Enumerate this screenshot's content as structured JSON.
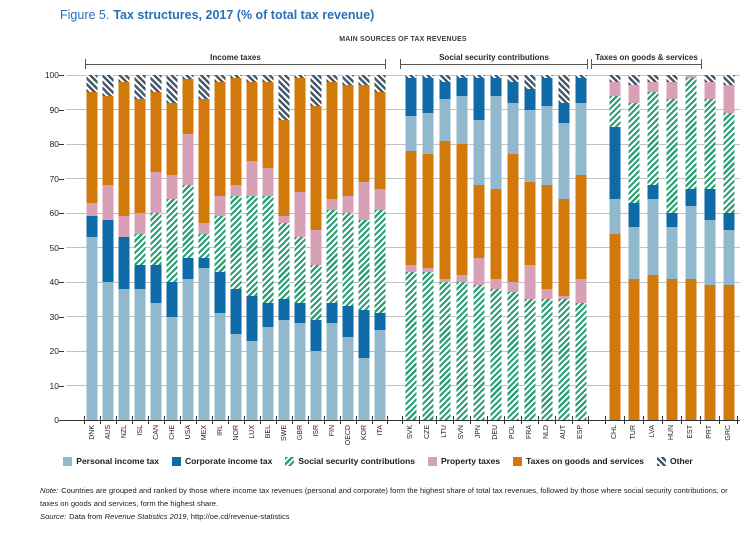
{
  "title": {
    "prefix": "Figure 5.",
    "text": "Tax structures, 2017 (% of total tax revenue)"
  },
  "header": {
    "main_label": "MAIN SOURCES OF TAX REVENUES"
  },
  "colors": {
    "personal_income_tax": "#92b8ce",
    "corporate_income_tax": "#0e6ba8",
    "social_security_contributions": "#2fa076",
    "property_taxes": "#d7a0b6",
    "goods_and_services": "#d2790c",
    "other": "#46586b",
    "title": "#2a70b8"
  },
  "legend": [
    {
      "key": "personal_income_tax",
      "label": "Personal income tax"
    },
    {
      "key": "corporate_income_tax",
      "label": "Corporate income tax"
    },
    {
      "key": "social_security_contributions",
      "label": "Social security contributions"
    },
    {
      "key": "property_taxes",
      "label": "Property taxes"
    },
    {
      "key": "goods_and_services",
      "label": "Taxes on goods and services"
    },
    {
      "key": "other",
      "label": "Other"
    }
  ],
  "note": {
    "label": "Note:",
    "text": "Countries are grouped and ranked by those where income tax revenues (personal and corporate) form the highest share of total tax revenues, followed by those where social security contributions, or taxes on goods and services, form the highest share."
  },
  "source": {
    "label": "Source:",
    "data_from": "Data from",
    "publication": "Revenue Statistics 2019",
    "rest": ", http://oe.cd/revenue-statistics"
  },
  "chart_data": {
    "type": "bar",
    "stacked": true,
    "unit": "% of total tax revenue",
    "ylim": [
      0,
      100
    ],
    "yticks": [
      0,
      10,
      20,
      30,
      40,
      50,
      60,
      70,
      80,
      90,
      100
    ],
    "grid": true,
    "legend_position": "bottom",
    "groups": [
      {
        "label": "Income taxes",
        "stack_order": [
          "personal_income_tax",
          "corporate_income_tax",
          "social_security_contributions",
          "property_taxes",
          "goods_and_services",
          "other"
        ],
        "bars": [
          {
            "country": "DNK",
            "values": {
              "personal_income_tax": 53,
              "corporate_income_tax": 6,
              "social_security_contributions": 0,
              "property_taxes": 4,
              "goods_and_services": 32,
              "other": 5
            }
          },
          {
            "country": "AUS",
            "values": {
              "personal_income_tax": 40,
              "corporate_income_tax": 18,
              "social_security_contributions": 0,
              "property_taxes": 10,
              "goods_and_services": 26,
              "other": 6
            }
          },
          {
            "country": "NZL",
            "values": {
              "personal_income_tax": 38,
              "corporate_income_tax": 15,
              "social_security_contributions": 0,
              "property_taxes": 6,
              "goods_and_services": 39,
              "other": 2
            }
          },
          {
            "country": "ISL",
            "values": {
              "personal_income_tax": 38,
              "corporate_income_tax": 7,
              "social_security_contributions": 9,
              "property_taxes": 6,
              "goods_and_services": 33,
              "other": 7
            }
          },
          {
            "country": "CAN",
            "values": {
              "personal_income_tax": 34,
              "corporate_income_tax": 11,
              "social_security_contributions": 15,
              "property_taxes": 12,
              "goods_and_services": 23,
              "other": 5
            }
          },
          {
            "country": "CHE",
            "values": {
              "personal_income_tax": 30,
              "corporate_income_tax": 10,
              "social_security_contributions": 24,
              "property_taxes": 7,
              "goods_and_services": 21,
              "other": 8
            }
          },
          {
            "country": "USA",
            "values": {
              "personal_income_tax": 41,
              "corporate_income_tax": 6,
              "social_security_contributions": 21,
              "property_taxes": 15,
              "goods_and_services": 16,
              "other": 1
            }
          },
          {
            "country": "MEX",
            "values": {
              "personal_income_tax": 44,
              "corporate_income_tax": 3,
              "social_security_contributions": 7,
              "property_taxes": 3,
              "goods_and_services": 36,
              "other": 7
            }
          },
          {
            "country": "IRL",
            "values": {
              "personal_income_tax": 31,
              "corporate_income_tax": 12,
              "social_security_contributions": 16,
              "property_taxes": 6,
              "goods_and_services": 33,
              "other": 2
            }
          },
          {
            "country": "NOR",
            "values": {
              "personal_income_tax": 25,
              "corporate_income_tax": 13,
              "social_security_contributions": 27,
              "property_taxes": 3,
              "goods_and_services": 31,
              "other": 1
            }
          },
          {
            "country": "LUX",
            "values": {
              "personal_income_tax": 23,
              "corporate_income_tax": 13,
              "social_security_contributions": 29,
              "property_taxes": 10,
              "goods_and_services": 23,
              "other": 2
            }
          },
          {
            "country": "BEL",
            "values": {
              "personal_income_tax": 27,
              "corporate_income_tax": 7,
              "social_security_contributions": 31,
              "property_taxes": 8,
              "goods_and_services": 25,
              "other": 2
            }
          },
          {
            "country": "SWE",
            "values": {
              "personal_income_tax": 29,
              "corporate_income_tax": 6,
              "social_security_contributions": 22,
              "property_taxes": 2,
              "goods_and_services": 28,
              "other": 13
            }
          },
          {
            "country": "GBR",
            "values": {
              "personal_income_tax": 28,
              "corporate_income_tax": 6,
              "social_security_contributions": 19,
              "property_taxes": 13,
              "goods_and_services": 33,
              "other": 1
            }
          },
          {
            "country": "ISR",
            "values": {
              "personal_income_tax": 20,
              "corporate_income_tax": 9,
              "social_security_contributions": 16,
              "property_taxes": 10,
              "goods_and_services": 36,
              "other": 9
            }
          },
          {
            "country": "FIN",
            "values": {
              "personal_income_tax": 28,
              "corporate_income_tax": 6,
              "social_security_contributions": 27,
              "property_taxes": 3,
              "goods_and_services": 34,
              "other": 2
            }
          },
          {
            "country": "OECD",
            "values": {
              "personal_income_tax": 24,
              "corporate_income_tax": 9,
              "social_security_contributions": 27,
              "property_taxes": 5,
              "goods_and_services": 32,
              "other": 3
            }
          },
          {
            "country": "KOR",
            "values": {
              "personal_income_tax": 18,
              "corporate_income_tax": 14,
              "social_security_contributions": 26,
              "property_taxes": 11,
              "goods_and_services": 28,
              "other": 3
            }
          },
          {
            "country": "ITA",
            "values": {
              "personal_income_tax": 26,
              "corporate_income_tax": 5,
              "social_security_contributions": 30,
              "property_taxes": 6,
              "goods_and_services": 28,
              "other": 5
            }
          }
        ]
      },
      {
        "label": "Social security contributions",
        "stack_order": [
          "social_security_contributions",
          "property_taxes",
          "goods_and_services",
          "personal_income_tax",
          "corporate_income_tax",
          "other"
        ],
        "bars": [
          {
            "country": "SVK",
            "values": {
              "personal_income_tax": 10,
              "corporate_income_tax": 11,
              "social_security_contributions": 43,
              "property_taxes": 2,
              "goods_and_services": 33,
              "other": 1
            }
          },
          {
            "country": "CZE",
            "values": {
              "personal_income_tax": 12,
              "corporate_income_tax": 10,
              "social_security_contributions": 43,
              "property_taxes": 1,
              "goods_and_services": 33,
              "other": 1
            }
          },
          {
            "country": "LTU",
            "values": {
              "personal_income_tax": 12,
              "corporate_income_tax": 5,
              "social_security_contributions": 40,
              "property_taxes": 1,
              "goods_and_services": 40,
              "other": 2
            }
          },
          {
            "country": "SVN",
            "values": {
              "personal_income_tax": 14,
              "corporate_income_tax": 5,
              "social_security_contributions": 40,
              "property_taxes": 2,
              "goods_and_services": 38,
              "other": 1
            }
          },
          {
            "country": "JPN",
            "values": {
              "personal_income_tax": 19,
              "corporate_income_tax": 12,
              "social_security_contributions": 39,
              "property_taxes": 8,
              "goods_and_services": 21,
              "other": 1
            }
          },
          {
            "country": "DEU",
            "values": {
              "personal_income_tax": 27,
              "corporate_income_tax": 5,
              "social_security_contributions": 38,
              "property_taxes": 3,
              "goods_and_services": 26,
              "other": 1
            }
          },
          {
            "country": "POL",
            "values": {
              "personal_income_tax": 15,
              "corporate_income_tax": 6,
              "social_security_contributions": 37,
              "property_taxes": 3,
              "goods_and_services": 37,
              "other": 2
            }
          },
          {
            "country": "FRA",
            "values": {
              "personal_income_tax": 21,
              "corporate_income_tax": 6,
              "social_security_contributions": 35,
              "property_taxes": 10,
              "goods_and_services": 24,
              "other": 4
            }
          },
          {
            "country": "NLD",
            "values": {
              "personal_income_tax": 23,
              "corporate_income_tax": 8,
              "social_security_contributions": 35,
              "property_taxes": 3,
              "goods_and_services": 30,
              "other": 1
            }
          },
          {
            "country": "AUT",
            "values": {
              "personal_income_tax": 22,
              "corporate_income_tax": 6,
              "social_security_contributions": 35,
              "property_taxes": 1,
              "goods_and_services": 28,
              "other": 8
            }
          },
          {
            "country": "ESP",
            "values": {
              "personal_income_tax": 21,
              "corporate_income_tax": 7,
              "social_security_contributions": 34,
              "property_taxes": 7,
              "goods_and_services": 30,
              "other": 1
            }
          }
        ]
      },
      {
        "label": "Taxes on goods & services",
        "stack_order": [
          "goods_and_services",
          "personal_income_tax",
          "corporate_income_tax",
          "social_security_contributions",
          "property_taxes",
          "other"
        ],
        "bars": [
          {
            "country": "CHL",
            "values": {
              "personal_income_tax": 10,
              "corporate_income_tax": 21,
              "social_security_contributions": 9,
              "property_taxes": 4,
              "goods_and_services": 54,
              "other": 2
            }
          },
          {
            "country": "TUR",
            "values": {
              "personal_income_tax": 15,
              "corporate_income_tax": 7,
              "social_security_contributions": 29,
              "property_taxes": 5,
              "goods_and_services": 41,
              "other": 3
            }
          },
          {
            "country": "LVA",
            "values": {
              "personal_income_tax": 22,
              "corporate_income_tax": 4,
              "social_security_contributions": 27,
              "property_taxes": 3,
              "goods_and_services": 42,
              "other": 2
            }
          },
          {
            "country": "HUN",
            "values": {
              "personal_income_tax": 15,
              "corporate_income_tax": 4,
              "social_security_contributions": 33,
              "property_taxes": 5,
              "goods_and_services": 41,
              "other": 2
            }
          },
          {
            "country": "EST",
            "values": {
              "personal_income_tax": 21,
              "corporate_income_tax": 5,
              "social_security_contributions": 32,
              "property_taxes": 1,
              "goods_and_services": 41,
              "other": 0
            }
          },
          {
            "country": "PRT",
            "values": {
              "personal_income_tax": 19,
              "corporate_income_tax": 9,
              "social_security_contributions": 26,
              "property_taxes": 5,
              "goods_and_services": 39,
              "other": 2
            }
          },
          {
            "country": "GRC",
            "values": {
              "personal_income_tax": 16,
              "corporate_income_tax": 5,
              "social_security_contributions": 29,
              "property_taxes": 8,
              "goods_and_services": 39,
              "other": 3
            }
          }
        ]
      }
    ]
  }
}
